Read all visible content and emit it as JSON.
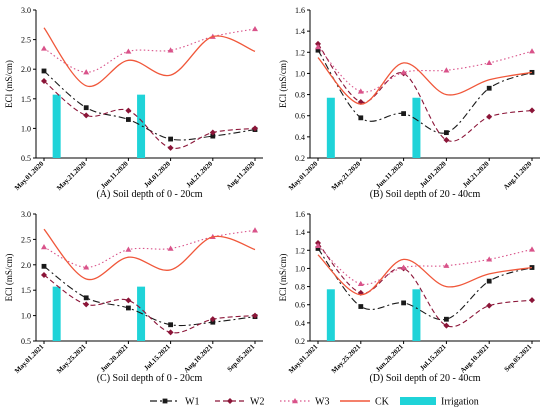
{
  "chart_data": [
    {
      "type": "line",
      "caption": "(A) Soil depth of 0 - 20cm",
      "ylabel": "ECl (mS/cm)",
      "ylim": [
        0.5,
        3.0
      ],
      "yticks": [
        "0.5",
        "1.0",
        "1.5",
        "2.0",
        "2.5",
        "3.0"
      ],
      "categories": [
        "May.01.2020",
        "May.21.2020",
        "Jun.11.2020",
        "Jul.01.2020",
        "Jul.21.2020",
        "Aug.11.2020"
      ],
      "series": [
        {
          "name": "W1",
          "values": [
            1.97,
            1.35,
            1.15,
            0.82,
            0.87,
            0.98
          ]
        },
        {
          "name": "W2",
          "values": [
            1.8,
            1.22,
            1.3,
            0.67,
            0.93,
            1.0
          ]
        },
        {
          "name": "W3",
          "values": [
            2.35,
            1.95,
            2.3,
            2.32,
            2.55,
            2.68
          ]
        },
        {
          "name": "CK",
          "values": [
            2.7,
            1.72,
            2.15,
            1.9,
            2.55,
            2.3
          ]
        }
      ],
      "irrigation": [
        {
          "at": 0.3,
          "value": 1.57
        },
        {
          "at": 2.3,
          "value": 1.57
        }
      ]
    },
    {
      "type": "line",
      "caption": "(B) Soil depth of 20 - 40cm",
      "ylabel": "ECl (mS/cm)",
      "ylim": [
        0.2,
        1.6
      ],
      "yticks": [
        "0.2",
        "0.4",
        "0.6",
        "0.8",
        "1.0",
        "1.2",
        "1.4",
        "1.6"
      ],
      "categories": [
        "May.01.2020",
        "May.21.2020",
        "Jun.11.2020",
        "Jul.01.2020",
        "Jul.21.2020",
        "Aug.11.2020"
      ],
      "series": [
        {
          "name": "W1",
          "values": [
            1.22,
            0.58,
            0.62,
            0.44,
            0.86,
            1.01
          ]
        },
        {
          "name": "W2",
          "values": [
            1.28,
            0.73,
            1.0,
            0.37,
            0.59,
            0.65
          ]
        },
        {
          "name": "W3",
          "values": [
            1.25,
            0.83,
            1.01,
            1.03,
            1.1,
            1.21
          ]
        },
        {
          "name": "CK",
          "values": [
            1.15,
            0.71,
            1.1,
            0.8,
            0.94,
            1.01
          ]
        }
      ],
      "irrigation": [
        {
          "at": 0.3,
          "value": 0.77
        },
        {
          "at": 2.3,
          "value": 0.77
        }
      ]
    },
    {
      "type": "line",
      "caption": "(C) Soil depth of 0 - 20cm",
      "ylabel": "ECl (mS/cm)",
      "ylim": [
        0.5,
        3.0
      ],
      "yticks": [
        "0.5",
        "1.0",
        "1.5",
        "2.0",
        "2.5",
        "3.0"
      ],
      "categories": [
        "May.01.2021",
        "May.25.2021",
        "Jun.20.2021",
        "Jul.15.2021",
        "Aug.10.2021",
        "Sep.05.2021"
      ],
      "series": [
        {
          "name": "W1",
          "values": [
            1.97,
            1.35,
            1.15,
            0.82,
            0.87,
            0.98
          ]
        },
        {
          "name": "W2",
          "values": [
            1.8,
            1.22,
            1.3,
            0.67,
            0.93,
            1.0
          ]
        },
        {
          "name": "W3",
          "values": [
            2.35,
            1.95,
            2.3,
            2.32,
            2.55,
            2.68
          ]
        },
        {
          "name": "CK",
          "values": [
            2.7,
            1.72,
            2.15,
            1.9,
            2.55,
            2.3
          ]
        }
      ],
      "irrigation": [
        {
          "at": 0.3,
          "value": 1.57
        },
        {
          "at": 2.3,
          "value": 1.57
        }
      ]
    },
    {
      "type": "line",
      "caption": "(D) Soil depth of 20 - 40cm",
      "ylabel": "ECl (mS/cm)",
      "ylim": [
        0.2,
        1.6
      ],
      "yticks": [
        "0.2",
        "0.4",
        "0.6",
        "0.8",
        "1.0",
        "1.2",
        "1.4",
        "1.6"
      ],
      "categories": [
        "May.01.2021",
        "May.25.2021",
        "Jun.20.2021",
        "Jul.15.2021",
        "Aug.10.2021",
        "Sep.05.2021"
      ],
      "series": [
        {
          "name": "W1",
          "values": [
            1.22,
            0.58,
            0.62,
            0.44,
            0.86,
            1.01
          ]
        },
        {
          "name": "W2",
          "values": [
            1.28,
            0.73,
            1.0,
            0.37,
            0.59,
            0.65
          ]
        },
        {
          "name": "W3",
          "values": [
            1.25,
            0.83,
            1.01,
            1.03,
            1.1,
            1.21
          ]
        },
        {
          "name": "CK",
          "values": [
            1.15,
            0.71,
            1.1,
            0.8,
            0.94,
            1.01
          ]
        }
      ],
      "irrigation": [
        {
          "at": 0.3,
          "value": 0.77
        },
        {
          "at": 2.3,
          "value": 0.77
        }
      ]
    }
  ],
  "legend": {
    "placement": "bottom",
    "items": [
      {
        "name": "W1",
        "kind": "line"
      },
      {
        "name": "W2",
        "kind": "line"
      },
      {
        "name": "W3",
        "kind": "line"
      },
      {
        "name": "CK",
        "kind": "line"
      },
      {
        "name": "Irrigation",
        "kind": "bar"
      }
    ]
  },
  "colors": {
    "W1": "#1a1a1a",
    "W2": "#8b1538",
    "W3": "#d9538a",
    "CK": "#f0573a",
    "Irrigation": "#1fd3d8",
    "axis": "#000000"
  }
}
